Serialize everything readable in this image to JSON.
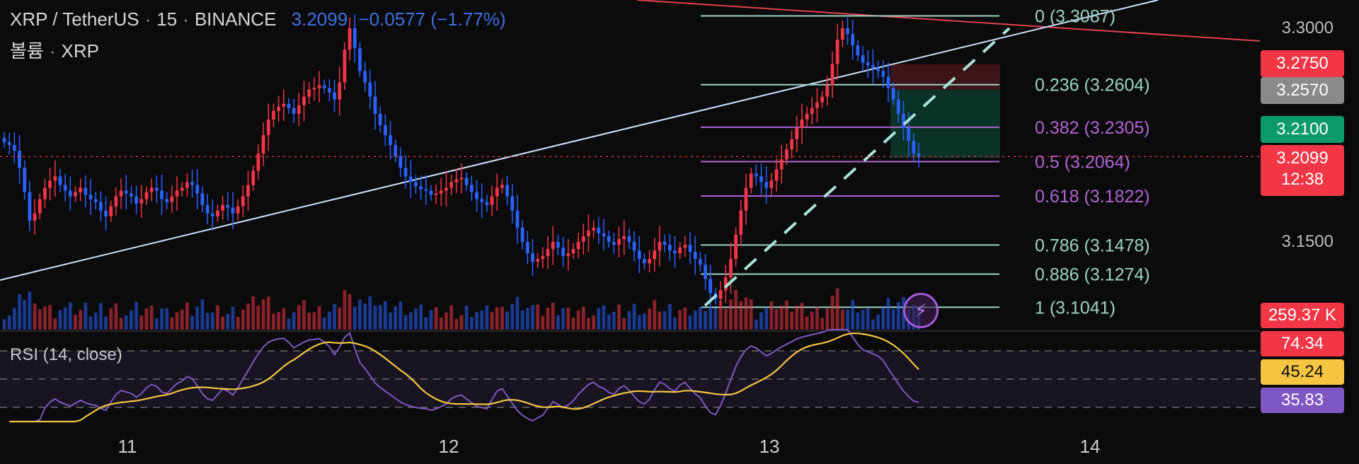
{
  "header": {
    "symbol": "XRP / TetherUS",
    "interval": "15",
    "exchange": "BINANCE",
    "last": "3.2099",
    "change": "−0.0577 (−1.77%)",
    "volume_label": "볼륨",
    "volume_unit": "XRP",
    "dot": "·"
  },
  "rsi": {
    "label": "RSI (14, close)"
  },
  "colors": {
    "up": "#f23645",
    "down": "#2962ff",
    "fib_green": "#9ad3c4",
    "fib_purple": "#b064d2",
    "trend": "#cfe2ff",
    "resistance": "#e0424d",
    "rsi_line": "#7e57c2",
    "rsi_ma": "#f5c542"
  },
  "chart_data": {
    "type": "candlestick",
    "x_ticks": [
      "11",
      "12",
      "13",
      "14"
    ],
    "price_axis": [
      "3.3000",
      "3.1500"
    ],
    "fib_levels": [
      {
        "label": "0 (3.3087)",
        "value": 3.3087,
        "color": "green"
      },
      {
        "label": "0.236 (3.2604)",
        "value": 3.2604,
        "color": "green"
      },
      {
        "label": "0.382 (3.2305)",
        "value": 3.2305,
        "color": "purple"
      },
      {
        "label": "0.5 (3.2064)",
        "value": 3.2064,
        "color": "purple"
      },
      {
        "label": "0.618 (3.1822)",
        "value": 3.1822,
        "color": "purple"
      },
      {
        "label": "0.786 (3.1478)",
        "value": 3.1478,
        "color": "green"
      },
      {
        "label": "0.886 (3.1274)",
        "value": 3.1274,
        "color": "green"
      },
      {
        "label": "1 (3.1041)",
        "value": 3.1041,
        "color": "green"
      }
    ],
    "price_tags": [
      {
        "text": "3.2750",
        "color": "#f23645"
      },
      {
        "text": "3.2570",
        "color": "#8a8a8a"
      },
      {
        "text": "3.2100",
        "color": "#0b9a6a"
      },
      {
        "text": "3.2099",
        "sub": "12:38",
        "color": "#f23645"
      },
      {
        "text": "259.37 K",
        "color": "#f23645"
      }
    ],
    "rsi_tags": [
      {
        "text": "74.34",
        "color": "#f23645"
      },
      {
        "text": "45.24",
        "color": "#f5c542"
      },
      {
        "text": "35.83",
        "color": "#7e57c2"
      }
    ],
    "rsi_bands": [
      70,
      50,
      30
    ],
    "closes": [
      3.22,
      3.218,
      3.214,
      3.202,
      3.185,
      3.165,
      3.17,
      3.18,
      3.188,
      3.193,
      3.196,
      3.19,
      3.186,
      3.182,
      3.185,
      3.188,
      3.183,
      3.18,
      3.178,
      3.172,
      3.168,
      3.175,
      3.182,
      3.186,
      3.184,
      3.182,
      3.177,
      3.18,
      3.185,
      3.188,
      3.186,
      3.18,
      3.178,
      3.182,
      3.186,
      3.188,
      3.192,
      3.19,
      3.184,
      3.176,
      3.17,
      3.168,
      3.172,
      3.176,
      3.174,
      3.17,
      3.175,
      3.182,
      3.19,
      3.2,
      3.212,
      3.225,
      3.236,
      3.242,
      3.245,
      3.247,
      3.244,
      3.24,
      3.246,
      3.252,
      3.257,
      3.258,
      3.26,
      3.258,
      3.255,
      3.25,
      3.262,
      3.285,
      3.3,
      3.286,
      3.27,
      3.262,
      3.252,
      3.24,
      3.232,
      3.225,
      3.218,
      3.21,
      3.202,
      3.196,
      3.192,
      3.189,
      3.187,
      3.186,
      3.183,
      3.184,
      3.186,
      3.188,
      3.192,
      3.194,
      3.195,
      3.19,
      3.185,
      3.18,
      3.178,
      3.176,
      3.182,
      3.188,
      3.19,
      3.182,
      3.172,
      3.16,
      3.15,
      3.142,
      3.136,
      3.138,
      3.14,
      3.145,
      3.15,
      3.146,
      3.14,
      3.142,
      3.145,
      3.15,
      3.154,
      3.158,
      3.16,
      3.156,
      3.154,
      3.15,
      3.148,
      3.152,
      3.154,
      3.15,
      3.144,
      3.138,
      3.135,
      3.138,
      3.144,
      3.15,
      3.148,
      3.144,
      3.142,
      3.146,
      3.148,
      3.143,
      3.138,
      3.134,
      3.124,
      3.114,
      3.11,
      3.116,
      3.125,
      3.138,
      3.155,
      3.172,
      3.188,
      3.198,
      3.196,
      3.192,
      3.188,
      3.193,
      3.201,
      3.208,
      3.215,
      3.222,
      3.23,
      3.236,
      3.24,
      3.244,
      3.248,
      3.252,
      3.26,
      3.275,
      3.292,
      3.3,
      3.296,
      3.288,
      3.281,
      3.276,
      3.274,
      3.272,
      3.27,
      3.266,
      3.258,
      3.25,
      3.24,
      3.23,
      3.221,
      3.212,
      3.21
    ]
  }
}
